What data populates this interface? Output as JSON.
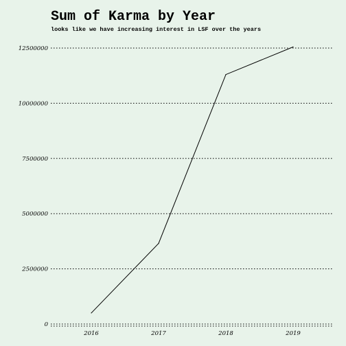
{
  "chart_data": {
    "type": "line",
    "title": "Sum of Karma by Year",
    "subtitle": "looks like we have increasing interest in LSF over the years",
    "xlabel": "",
    "ylabel": "",
    "x": [
      "2016",
      "2017",
      "2018",
      "2019"
    ],
    "series": [
      {
        "values": [
          500000,
          3650000,
          11300000,
          12550000
        ]
      }
    ],
    "ylim": [
      0,
      12500000
    ],
    "yticks": [
      0,
      2500000,
      5000000,
      7500000,
      10000000,
      12500000
    ],
    "ytick_labels": [
      "0",
      "2500000",
      "5000000",
      "7500000",
      "10000000",
      "12500000"
    ],
    "grid": "horizontal-dotted",
    "line_color": "#000000",
    "background": "#e8f3ea"
  }
}
